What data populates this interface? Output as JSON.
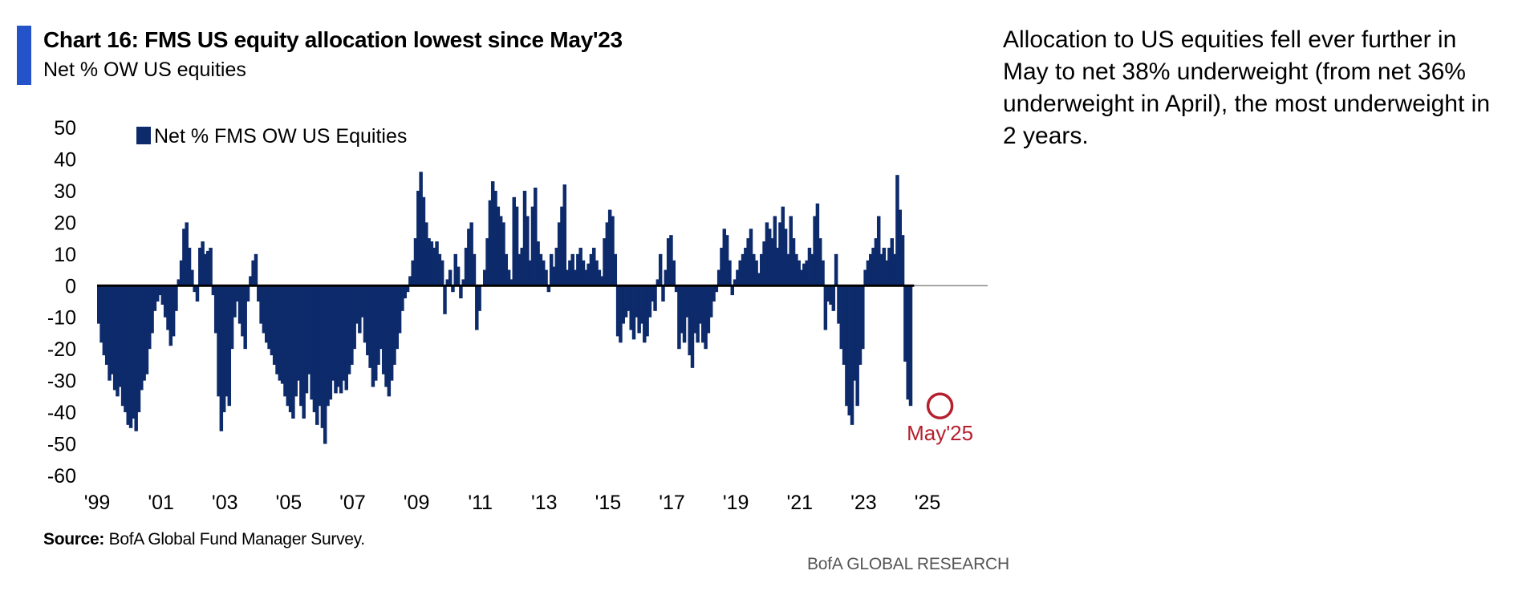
{
  "header": {
    "title": "Chart 16: FMS US equity allocation lowest since May'23",
    "subtitle": "Net % OW US equities",
    "accent_color": "#2452c8"
  },
  "commentary": "Allocation to US equities fell ever further in May to net 38% underweight (from net 36% underweight in April), the most underweight in 2 years.",
  "footer": {
    "source_label": "Source:",
    "source_text": "BofA Global Fund Manager Survey.",
    "brand": "BofA GLOBAL RESEARCH"
  },
  "chart_data": {
    "type": "bar",
    "title": "Chart 16: FMS US equity allocation lowest since May'23",
    "subtitle": "Net % OW US equities",
    "xlabel": "",
    "ylabel": "",
    "ylim": [
      -60,
      50
    ],
    "yticks": [
      50,
      40,
      30,
      20,
      10,
      0,
      -10,
      -20,
      -30,
      -40,
      -50,
      -60
    ],
    "xticks": [
      {
        "label": "'99",
        "year": 1999
      },
      {
        "label": "'01",
        "year": 2001
      },
      {
        "label": "'03",
        "year": 2003
      },
      {
        "label": "'05",
        "year": 2005
      },
      {
        "label": "'07",
        "year": 2007
      },
      {
        "label": "'09",
        "year": 2009
      },
      {
        "label": "'11",
        "year": 2011
      },
      {
        "label": "'13",
        "year": 2013
      },
      {
        "label": "'15",
        "year": 2015
      },
      {
        "label": "'17",
        "year": 2017
      },
      {
        "label": "'19",
        "year": 2019
      },
      {
        "label": "'21",
        "year": 2021
      },
      {
        "label": "'23",
        "year": 2023
      },
      {
        "label": "'25",
        "year": 2025
      }
    ],
    "grid": false,
    "legend": {
      "position": "top-left",
      "entries": [
        {
          "name": "Net % FMS OW US Equities",
          "color": "#0d2a6b"
        }
      ]
    },
    "colors": {
      "bars": "#0d2a6b",
      "zero_line": "#000000",
      "annotation": "#b5202e"
    },
    "annotation": {
      "label": "May'25",
      "date": "2025-05",
      "value": -38
    },
    "series": [
      {
        "name": "Net % FMS OW US Equities",
        "start": "1999-01",
        "frequency": "monthly",
        "values": [
          -12,
          -18,
          -22,
          -25,
          -30,
          -28,
          -33,
          -35,
          -32,
          -38,
          -40,
          -44,
          -45,
          -42,
          -46,
          -40,
          -33,
          -30,
          -28,
          -20,
          -15,
          -8,
          -5,
          -3,
          -6,
          -10,
          -14,
          -19,
          -16,
          -8,
          2,
          8,
          18,
          20,
          12,
          5,
          -2,
          -5,
          12,
          14,
          10,
          11,
          12,
          -3,
          -15,
          -35,
          -46,
          -40,
          -35,
          -38,
          -20,
          -10,
          -5,
          -12,
          -16,
          -20,
          -5,
          3,
          8,
          10,
          -5,
          -12,
          -15,
          -18,
          -20,
          -22,
          -25,
          -28,
          -30,
          -31,
          -35,
          -38,
          -40,
          -42,
          -35,
          -30,
          -38,
          -42,
          -34,
          -28,
          -36,
          -40,
          -44,
          -38,
          -45,
          -50,
          -38,
          -36,
          -30,
          -34,
          -32,
          -34,
          -30,
          -33,
          -28,
          -25,
          -20,
          -12,
          -15,
          -10,
          -18,
          -22,
          -26,
          -32,
          -30,
          -25,
          -20,
          -28,
          -32,
          -35,
          -30,
          -25,
          -20,
          -15,
          -8,
          -4,
          -2,
          3,
          8,
          15,
          30,
          36,
          28,
          20,
          15,
          14,
          12,
          14,
          10,
          8,
          -9,
          2,
          5,
          -2,
          10,
          6,
          -4,
          2,
          12,
          18,
          20,
          10,
          -14,
          -8,
          0,
          5,
          15,
          27,
          33,
          30,
          25,
          22,
          20,
          10,
          5,
          2,
          28,
          25,
          10,
          12,
          30,
          22,
          8,
          25,
          31,
          14,
          10,
          8,
          5,
          -2,
          10,
          6,
          12,
          20,
          25,
          32,
          5,
          8,
          10,
          5,
          10,
          12,
          8,
          5,
          7,
          10,
          12,
          8,
          5,
          3,
          15,
          20,
          24,
          22,
          10,
          -16,
          -18,
          -12,
          -10,
          -8,
          -14,
          -17,
          -10,
          -15,
          -12,
          -18,
          -16,
          -10,
          -5,
          -8,
          2,
          10,
          -5,
          5,
          15,
          16,
          8,
          -2,
          -20,
          -15,
          -18,
          -10,
          -22,
          -26,
          -15,
          -18,
          -12,
          -18,
          -20,
          -15,
          -10,
          -5,
          -2,
          5,
          12,
          18,
          16,
          8,
          -3,
          2,
          5,
          8,
          10,
          12,
          15,
          18,
          10,
          8,
          4,
          10,
          14,
          20,
          18,
          15,
          22,
          12,
          20,
          25,
          18,
          10,
          22,
          15,
          10,
          8,
          5,
          7,
          8,
          12,
          10,
          22,
          26,
          15,
          8,
          -14,
          -5,
          -6,
          -8,
          10,
          -12,
          -20,
          -25,
          -38,
          -41,
          -44,
          -30,
          -38,
          -25,
          -20,
          5,
          8,
          10,
          12,
          15,
          22,
          10,
          12,
          8,
          12,
          15,
          10,
          35,
          24,
          16,
          -24,
          -36,
          -38
        ]
      }
    ]
  }
}
